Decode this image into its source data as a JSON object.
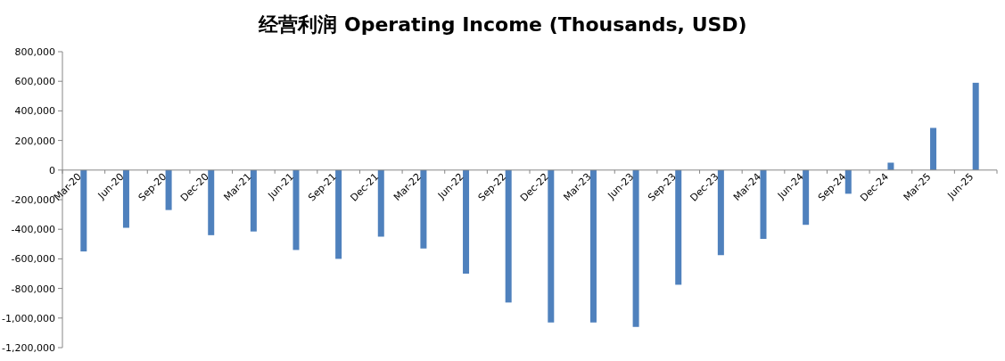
{
  "chart_data": {
    "type": "bar",
    "title": "经营利润 Operating Income (Thousands, USD)",
    "categories": [
      "Mar-20",
      "Jun-20",
      "Sep-20",
      "Dec-20",
      "Mar-21",
      "Jun-21",
      "Sep-21",
      "Dec-21",
      "Mar-22",
      "Jun-22",
      "Sep-22",
      "Dec-22",
      "Mar-23",
      "Jun-23",
      "Sep-23",
      "Dec-23",
      "Mar-24",
      "Jun-24",
      "Sep-24",
      "Dec-24",
      "Mar-25",
      "Jun-25"
    ],
    "values": [
      -550000,
      -390000,
      -270000,
      -440000,
      -415000,
      -540000,
      -600000,
      -450000,
      -530000,
      -700000,
      -895000,
      -1030000,
      -1030000,
      -1060000,
      -775000,
      -575000,
      -465000,
      -370000,
      -160000,
      50000,
      285000,
      590000
    ],
    "color": "#4f81bd",
    "ylim": [
      -1200000,
      800000
    ],
    "yticks": [
      {
        "value": 800000,
        "label": "800,000"
      },
      {
        "value": 600000,
        "label": "600,000"
      },
      {
        "value": 400000,
        "label": "400,000"
      },
      {
        "value": 200000,
        "label": "200,000"
      },
      0,
      {
        "value": -200000,
        "label": "-200,000"
      },
      {
        "value": -400000,
        "label": "-400,000"
      },
      {
        "value": -600000,
        "label": "-600,000"
      },
      {
        "value": -800000,
        "label": "-800,000"
      },
      {
        "value": -1000000,
        "label": "-1,000,000"
      },
      {
        "value": -1200000,
        "label": "-1,200,000"
      }
    ],
    "grid": false
  }
}
